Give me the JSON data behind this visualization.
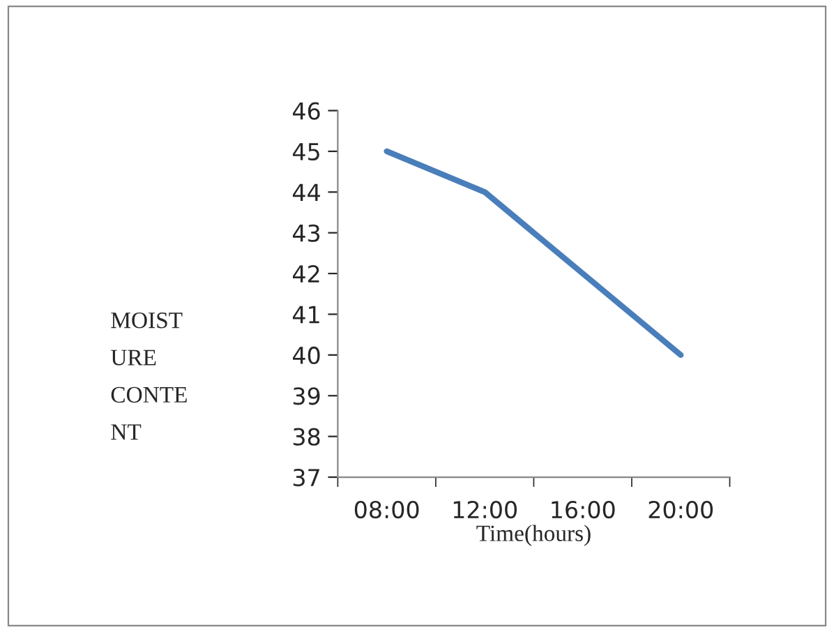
{
  "chart_data": {
    "type": "line",
    "xlabel": "Time(hours)",
    "ylabel": "MOIST\nURE\nCONTE\nNT",
    "categories": [
      "08:00",
      "12:00",
      "16:00",
      "20:00"
    ],
    "series": [
      {
        "color": "#4a7ebb",
        "values": [
          45,
          44,
          42,
          40
        ]
      }
    ],
    "ylim": [
      37,
      46
    ],
    "yticks": [
      37,
      38,
      39,
      40,
      41,
      42,
      43,
      44,
      45,
      46
    ],
    "grid": false,
    "marker": "none",
    "line_style": "solid"
  }
}
